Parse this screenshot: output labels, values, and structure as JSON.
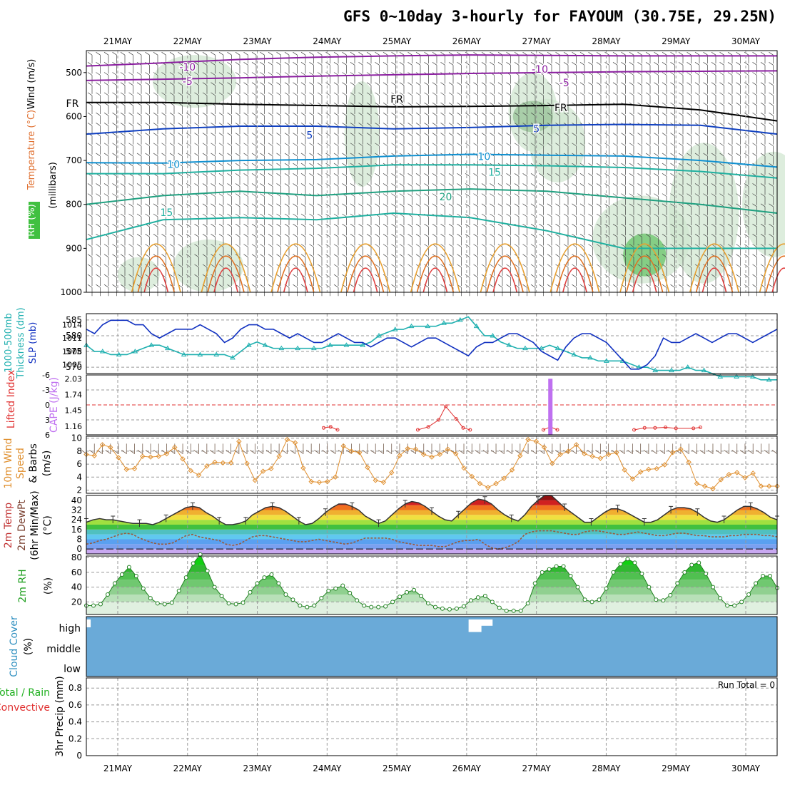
{
  "title": "GFS 0~10day 3-hourly for FAYOUM (30.75E, 29.25N)",
  "dates": [
    "21MAY",
    "22MAY",
    "23MAY",
    "24MAY",
    "25MAY",
    "26MAY",
    "27MAY",
    "28MAY",
    "29MAY",
    "30MAY"
  ],
  "run_total": "Run Total = 0",
  "chart_data": [
    {
      "type": "line",
      "panel": "upper-air",
      "ylabel_parts": [
        "RH (%)",
        "Temperature (°C)",
        "Wind (m/s)",
        "(millibars)"
      ],
      "y_ticks": [
        "500",
        "600",
        "700",
        "800",
        "900",
        "1000"
      ],
      "ylim": [
        1000,
        450
      ],
      "contour_labels": [
        {
          "text": "-10",
          "day": 2.0,
          "p": 487,
          "color": "#8B1FA0"
        },
        {
          "text": "-10",
          "day": 7.05,
          "p": 492,
          "color": "#8B1FA0"
        },
        {
          "text": "-5",
          "day": 2.0,
          "p": 520,
          "color": "#8B1FA0"
        },
        {
          "text": "-5",
          "day": 7.4,
          "p": 523,
          "color": "#8B1FA0"
        },
        {
          "text": "FR",
          "day": 0.35,
          "p": 570,
          "color": "#000000"
        },
        {
          "text": "FR",
          "day": 5.0,
          "p": 560,
          "color": "#000000"
        },
        {
          "text": "FR",
          "day": 7.35,
          "p": 580,
          "color": "#000000"
        },
        {
          "text": "5",
          "day": 3.75,
          "p": 642,
          "color": "#1040C0"
        },
        {
          "text": "5",
          "day": 7.0,
          "p": 628,
          "color": "#1040C0"
        },
        {
          "text": "10",
          "day": 1.8,
          "p": 709,
          "color": "#1090D0"
        },
        {
          "text": "10",
          "day": 6.25,
          "p": 691,
          "color": "#1090D0"
        },
        {
          "text": "15",
          "day": 6.4,
          "p": 727,
          "color": "#20B0A0"
        },
        {
          "text": "20",
          "day": 5.7,
          "p": 783,
          "color": "#20A080"
        },
        {
          "text": "15",
          "day": 1.7,
          "p": 818,
          "color": "#20B0A0"
        }
      ]
    },
    {
      "type": "line",
      "panel": "thickness-slp",
      "ylabel_left": [
        "1000-500mb",
        "Thickness (dm)"
      ],
      "ylabel_right": "SLP (mb)",
      "thickness_ticks": [
        570,
        575,
        580,
        585
      ],
      "slp_ticks": [
        1005,
        1008,
        1011,
        1014
      ],
      "series": [
        {
          "name": "1000-500mb Thickness (dm)",
          "color": "#20B0B0",
          "values": [
            577,
            575,
            575,
            574,
            574,
            574,
            575,
            576,
            577,
            577,
            576,
            575,
            574,
            574,
            574,
            574,
            574,
            574,
            573,
            575,
            577,
            578,
            577,
            576,
            576,
            576,
            576,
            576,
            576,
            576,
            577,
            577,
            577,
            577,
            577,
            578,
            580,
            581,
            582,
            582,
            583,
            583,
            583,
            583,
            584,
            584,
            585,
            586,
            583,
            580,
            580,
            578,
            577,
            576,
            576,
            576,
            576,
            577,
            576,
            575,
            574,
            573,
            573,
            572,
            572,
            572,
            572,
            571,
            570,
            570,
            569,
            569,
            569,
            569,
            570,
            569,
            569,
            568,
            567,
            567,
            567,
            567,
            567,
            566,
            566,
            566
          ]
        },
        {
          "name": "SLP (mb)",
          "color": "#1030C0",
          "values": [
            1013,
            1012,
            1014,
            1015,
            1015,
            1015,
            1014,
            1014,
            1012,
            1011,
            1012,
            1013,
            1013,
            1013,
            1014,
            1013,
            1012,
            1010,
            1011,
            1013,
            1014,
            1014,
            1013,
            1013,
            1012,
            1011,
            1012,
            1011,
            1010,
            1010,
            1011,
            1012,
            1011,
            1010,
            1010,
            1009,
            1010,
            1011,
            1011,
            1010,
            1009,
            1010,
            1011,
            1011,
            1010,
            1009,
            1008,
            1007,
            1009,
            1010,
            1010,
            1011,
            1012,
            1012,
            1011,
            1010,
            1008,
            1007,
            1006,
            1009,
            1011,
            1012,
            1012,
            1011,
            1010,
            1008,
            1006,
            1004,
            1004,
            1005,
            1007,
            1011,
            1010,
            1010,
            1011,
            1012,
            1011,
            1010,
            1011,
            1012,
            1012,
            1011,
            1010,
            1011,
            1012,
            1013
          ]
        }
      ]
    },
    {
      "type": "line",
      "panel": "instability",
      "ylabel_left": "Lifted Index",
      "ylabel_right": "CAPE (J/kg)",
      "li_ticks": [
        "-6",
        "-3",
        "0",
        "3",
        "6"
      ],
      "cape_ticks": [
        "1.16",
        "1.45",
        "1.74",
        "2.03"
      ],
      "lifted_index": [
        {
          "day": 3.95,
          "li": 4.6
        },
        {
          "day": 4.05,
          "li": 4.4
        },
        {
          "day": 4.15,
          "li": 5.0
        },
        {
          "day": 5.3,
          "li": 5.0
        },
        {
          "day": 5.45,
          "li": 4.4
        },
        {
          "day": 5.6,
          "li": 3.0
        },
        {
          "day": 5.7,
          "li": 0.3
        },
        {
          "day": 5.85,
          "li": 2.8
        },
        {
          "day": 5.95,
          "li": 4.6
        },
        {
          "day": 6.05,
          "li": 5.0
        },
        {
          "day": 7.1,
          "li": 5.0
        },
        {
          "day": 7.2,
          "li": 4.4
        },
        {
          "day": 7.3,
          "li": 5.0
        },
        {
          "day": 8.4,
          "li": 5.0
        },
        {
          "day": 8.55,
          "li": 4.6
        },
        {
          "day": 8.7,
          "li": 4.6
        },
        {
          "day": 8.85,
          "li": 4.5
        },
        {
          "day": 9.0,
          "li": 4.7
        },
        {
          "day": 9.25,
          "li": 4.7
        },
        {
          "day": 9.35,
          "li": 4.5
        }
      ],
      "cape": [
        {
          "day": 7.2,
          "value": 2.03
        }
      ]
    },
    {
      "type": "line",
      "panel": "wind10m",
      "ylabel": [
        "10m Wind",
        "Speed",
        "& Barbs",
        "(m/s)"
      ],
      "y_ticks": [
        2,
        4,
        6,
        8,
        10
      ],
      "series": [
        {
          "name": "10m Wind Speed",
          "color": "#E09030",
          "values": [
            7.5,
            7.3,
            9,
            8.6,
            7,
            5.2,
            5.3,
            7.2,
            7.1,
            7.2,
            7.6,
            8.6,
            6.8,
            5,
            4.3,
            5.7,
            6.3,
            6.2,
            6.2,
            9.5,
            6.1,
            3.5,
            4.9,
            5.3,
            7.2,
            9.8,
            9.3,
            5.4,
            3.3,
            3.2,
            3.3,
            4,
            8.8,
            8,
            7.8,
            5.5,
            3.5,
            3.2,
            4.7,
            7.3,
            8.4,
            8.3,
            7.5,
            7.1,
            7.5,
            8.3,
            7.6,
            5.4,
            4.1,
            3,
            2.4,
            3,
            3.8,
            5.1,
            7.3,
            9.8,
            9.5,
            8.6,
            6.1,
            7.5,
            8,
            9,
            7.6,
            7.2,
            6.9,
            7.5,
            7.8,
            5.1,
            3.7,
            4.8,
            5.2,
            5.3,
            5.9,
            7.8,
            8.3,
            6.3,
            3,
            2.6,
            2.2,
            3.6,
            4.4,
            4.7,
            3.9,
            4.6,
            2.6,
            2.6,
            2.6
          ]
        }
      ]
    },
    {
      "type": "area",
      "panel": "temperature",
      "ylabel": [
        "2m Temp",
        "2m DewPt",
        "(6hr Min/Max)",
        "(°C)"
      ],
      "y_ticks": [
        0,
        8,
        16,
        24,
        32,
        40
      ],
      "series": [
        {
          "name": "2m Temp",
          "color": "#333333",
          "values": [
            22,
            24,
            25,
            24,
            24,
            23,
            22,
            21,
            21,
            21,
            20,
            22,
            25,
            28,
            31,
            34,
            35,
            34,
            30,
            27,
            23,
            20,
            20,
            21,
            23,
            28,
            31,
            34,
            35,
            34,
            31,
            27,
            23,
            20,
            21,
            25,
            30,
            34,
            37,
            37,
            35,
            32,
            27,
            24,
            21,
            23,
            28,
            33,
            37,
            39,
            38,
            35,
            31,
            27,
            24,
            23,
            28,
            33,
            38,
            41,
            40,
            37,
            32,
            28,
            25,
            23,
            28,
            35,
            40,
            44,
            44,
            39,
            34,
            30,
            26,
            22,
            22,
            26,
            30,
            33,
            33,
            31,
            28,
            25,
            22,
            22,
            24,
            28,
            32,
            34,
            34,
            33,
            30,
            26,
            23,
            22,
            24,
            28,
            32,
            35,
            35,
            33,
            30,
            26,
            24
          ]
        },
        {
          "name": "2m DewPt",
          "color": "#9A5A3A",
          "values": [
            4,
            5,
            7,
            8,
            10,
            12,
            13,
            12,
            9,
            7,
            5,
            4,
            4,
            5,
            8,
            11,
            12,
            10,
            9,
            8,
            7,
            4,
            3,
            4,
            7,
            10,
            11,
            11,
            10,
            9,
            8,
            7,
            6,
            6,
            7,
            8,
            7,
            6,
            5,
            4,
            5,
            7,
            9,
            9,
            9,
            9,
            8,
            6,
            5,
            4,
            3,
            3,
            3,
            2,
            2,
            4,
            6,
            7,
            7,
            8,
            4,
            1,
            0,
            1,
            3,
            6,
            12,
            14,
            15,
            15,
            15,
            14,
            13,
            12,
            12,
            14,
            15,
            15,
            14,
            13,
            12,
            12,
            13,
            14,
            13,
            12,
            11,
            11,
            12,
            13,
            13,
            12,
            11,
            11,
            10,
            10,
            10,
            11,
            11,
            12,
            12,
            12,
            11,
            11,
            10
          ]
        }
      ]
    },
    {
      "type": "area",
      "panel": "rh2m",
      "ylabel": [
        "2m RH",
        "(%)"
      ],
      "y_ticks": [
        20,
        40,
        60,
        80
      ],
      "series": [
        {
          "name": "2m RH",
          "color": "#208020",
          "values": [
            15,
            15,
            17,
            30,
            45,
            57,
            67,
            55,
            38,
            25,
            18,
            17,
            19,
            35,
            53,
            72,
            84,
            62,
            40,
            28,
            18,
            17,
            19,
            33,
            45,
            53,
            57,
            45,
            30,
            23,
            15,
            13,
            15,
            25,
            35,
            38,
            42,
            32,
            22,
            15,
            13,
            13,
            14,
            20,
            27,
            33,
            36,
            28,
            18,
            13,
            11,
            10,
            11,
            14,
            22,
            26,
            28,
            20,
            12,
            8,
            8,
            8,
            18,
            45,
            60,
            64,
            68,
            68,
            55,
            40,
            23,
            20,
            23,
            38,
            60,
            71,
            78,
            73,
            58,
            40,
            23,
            22,
            29,
            45,
            60,
            70,
            73,
            58,
            40,
            25,
            15,
            15,
            20,
            30,
            45,
            55,
            55,
            39
          ]
        }
      ]
    },
    {
      "type": "bar",
      "panel": "cloud",
      "ylabel": [
        "Cloud Cover",
        "(%)"
      ],
      "levels": [
        "high",
        "middle",
        "low"
      ],
      "high_cloud": [
        {
          "day": 0.35,
          "value": 0.6
        },
        {
          "day": 0.52,
          "value": 0.5
        },
        {
          "day": 6.12,
          "value": 0.8
        },
        {
          "day": 6.28,
          "value": 0.4
        }
      ]
    },
    {
      "type": "bar",
      "panel": "precip",
      "ylabel": [
        "3hr Precip (mm)"
      ],
      "legend": [
        "Total / Rain",
        "Convective"
      ],
      "y_ticks": [
        "0",
        "0.2",
        "0.4",
        "0.6",
        "0.8"
      ],
      "values": []
    }
  ],
  "colors": {
    "cloud_blue": "#6AAAD8",
    "frame": "#000000",
    "grid": "#A0A0A0",
    "lifted_index": "#E03030",
    "cape": "#BF70F0",
    "rh_green": "#20A020",
    "temp_dark": "#5A5A5A"
  }
}
